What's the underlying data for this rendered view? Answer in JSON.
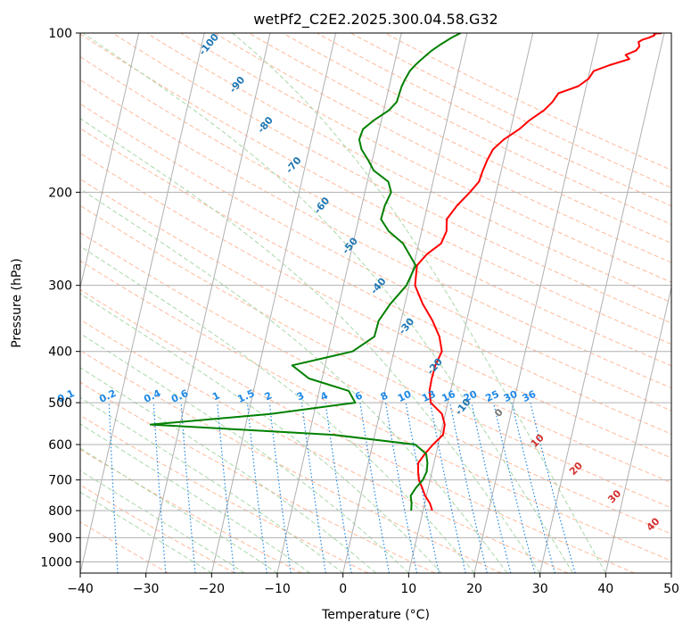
{
  "chart_data": {
    "type": "line",
    "title": "wetPf2_C2E2.2025.300.04.58.G32",
    "xlabel": "Temperature (°C)",
    "ylabel": "Pressure (hPa)",
    "xlim": [
      -40,
      50
    ],
    "ylim": [
      1050,
      100
    ],
    "y_scale": "log",
    "grid": true,
    "x_ticks": [
      "−40",
      "−30",
      "−20",
      "−10",
      "0",
      "10",
      "20",
      "30",
      "40",
      "50"
    ],
    "y_ticks": [
      "100",
      "200",
      "300",
      "400",
      "500",
      "600",
      "700",
      "800",
      "900",
      "1000"
    ],
    "series": [
      {
        "color": "#ff0000",
        "x": [
          11.4,
          10.8,
          9.8,
          9.1,
          8.3,
          7.9,
          7.6,
          8.3,
          9.2,
          10.4,
          10.3,
          9.5,
          7.4,
          6.8,
          6.7,
          6.8,
          7.3,
          6.4,
          4.8,
          2.7,
          0.9,
          0.5,
          1.6,
          3.4,
          3.8,
          3.4,
          4.5,
          6.0,
          7.0,
          7.2,
          7.5,
          8.0,
          9.3,
          11.3,
          12.6,
          14.4,
          15.4,
          16.0,
          18.8,
          20.1,
          20.6,
          22.8,
          25.6,
          24.9,
          26.3,
          26.7,
          26.4,
          26.9,
          27.9,
          28.6,
          28.5,
          28.8,
          29.5,
          29.6
        ],
        "y": [
          800,
          775,
          750,
          725,
          700,
          675,
          650,
          625,
          600,
          575,
          550,
          525,
          500,
          475,
          450,
          425,
          400,
          375,
          350,
          325,
          300,
          275,
          262,
          250,
          237,
          225,
          212,
          200,
          191,
          182,
          174,
          166,
          159,
          152,
          146,
          140,
          135,
          130,
          126,
          122,
          118,
          115,
          112,
          110,
          108,
          106,
          104,
          103,
          102,
          101,
          100.5,
          100.2,
          100.1,
          100
        ]
      },
      {
        "color": "#008000",
        "x": [
          8.2,
          8.0,
          7.6,
          8.1,
          8.9,
          9.2,
          9.0,
          8.5,
          6.5,
          -6.3,
          -34.5,
          -16.6,
          -4.1,
          -5.5,
          -12.0,
          -15.0,
          -6.3,
          -3.5,
          -3.4,
          -2.2,
          -0.4,
          0.3,
          -2.4,
          -5.0,
          -6.6,
          -6.5,
          -6.0,
          -6.8,
          -9.4,
          -10.6,
          -12.0,
          -12.7,
          -12.5,
          -11.1,
          -9.2,
          -8.3,
          -8.2,
          -8.1,
          -7.8,
          -7.4,
          -6.8,
          -6.0,
          -4.8,
          -3.6,
          -2.2,
          -1.0
        ],
        "y": [
          800,
          775,
          750,
          725,
          700,
          675,
          650,
          625,
          600,
          575,
          550,
          525,
          500,
          475,
          450,
          425,
          400,
          375,
          350,
          325,
          300,
          275,
          250,
          237,
          225,
          212,
          200,
          191,
          182,
          174,
          166,
          159,
          152,
          146,
          140,
          135,
          130,
          126,
          122,
          118,
          115,
          112,
          108,
          105,
          102,
          100
        ]
      }
    ],
    "dry_adiabat_labels": [
      "0",
      "10",
      "20",
      "30",
      "40"
    ],
    "moist_adiabat_labels": [
      "-100",
      "-90",
      "-80",
      "-70",
      "-60",
      "-50",
      "-40",
      "-30",
      "-20",
      "-10"
    ],
    "mixing_ratio_labels": [
      "0.1",
      "0.2",
      "0.4",
      "0.6",
      "1",
      "1.5",
      "2",
      "3",
      "4",
      "6",
      "8",
      "10",
      "13",
      "16",
      "20",
      "25",
      "30",
      "36"
    ],
    "colors": {
      "temperature": "#ff0000",
      "dewpoint": "#008000",
      "mixing_ratio": "#1e88e5",
      "dry_adiabat_label": "#d32f2f",
      "moist_adiabat_label": "#1f77b4",
      "isobar_grid": "#b0b0b0",
      "dry_adiabat_line": "#ffb89a",
      "moist_adiabat_line": "#a8d8a8"
    }
  }
}
